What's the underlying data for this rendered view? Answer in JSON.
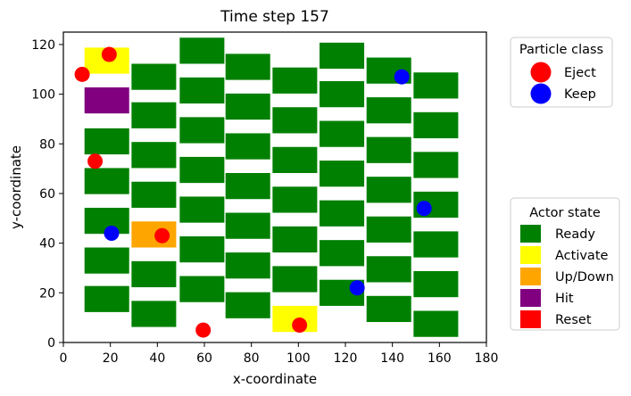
{
  "chart_data": {
    "type": "scatter",
    "title": "Time step 157",
    "xlabel": "x-coordinate",
    "ylabel": "y-coordinate",
    "xlim": [
      0,
      180
    ],
    "ylim": [
      0,
      125
    ],
    "xticks": [
      0,
      20,
      40,
      60,
      80,
      100,
      120,
      140,
      160,
      180
    ],
    "yticks": [
      0,
      20,
      40,
      60,
      80,
      100,
      120
    ],
    "grid": false,
    "actor_width": 19,
    "actor_height": 10.5,
    "state_colors": {
      "Ready": "#008000",
      "Activate": "#ffff00",
      "Up/Down": "#ffa500",
      "Hit": "#800080",
      "Reset": "#ff0000"
    },
    "particle_colors": {
      "Eject": "#ff0000",
      "Keep": "#0000ff"
    },
    "actor_columns": [
      {
        "x": 18.5,
        "centers": [
          17.5,
          33.0,
          49.0,
          65.0,
          81.0,
          97.5,
          113.5
        ],
        "states": [
          "Ready",
          "Ready",
          "Ready",
          "Ready",
          "Ready",
          "Hit",
          "Activate"
        ]
      },
      {
        "x": 38.5,
        "centers": [
          11.5,
          27.5,
          43.5,
          59.5,
          75.5,
          91.5,
          107.0
        ],
        "states": [
          "Ready",
          "Ready",
          "Up/Down",
          "Ready",
          "Ready",
          "Ready",
          "Ready"
        ]
      },
      {
        "x": 59.0,
        "centers": [
          21.5,
          37.5,
          53.5,
          69.5,
          85.5,
          101.5,
          117.5
        ],
        "states": [
          "Ready",
          "Ready",
          "Ready",
          "Ready",
          "Ready",
          "Ready",
          "Ready"
        ]
      },
      {
        "x": 78.5,
        "centers": [
          15.0,
          31.0,
          47.0,
          63.0,
          79.0,
          95.0,
          111.0
        ],
        "states": [
          "Ready",
          "Ready",
          "Ready",
          "Ready",
          "Ready",
          "Ready",
          "Ready"
        ]
      },
      {
        "x": 98.5,
        "centers": [
          9.5,
          25.5,
          41.5,
          57.5,
          73.5,
          89.5,
          105.5
        ],
        "states": [
          "Activate",
          "Ready",
          "Ready",
          "Ready",
          "Ready",
          "Ready",
          "Ready"
        ]
      },
      {
        "x": 118.5,
        "centers": [
          20.0,
          36.0,
          52.0,
          68.0,
          84.0,
          100.0,
          115.5
        ],
        "states": [
          "Ready",
          "Ready",
          "Ready",
          "Ready",
          "Ready",
          "Ready",
          "Ready"
        ]
      },
      {
        "x": 138.5,
        "centers": [
          13.5,
          29.5,
          45.5,
          61.5,
          77.5,
          93.5,
          109.5
        ],
        "states": [
          "Ready",
          "Ready",
          "Ready",
          "Ready",
          "Ready",
          "Ready",
          "Ready"
        ]
      },
      {
        "x": 158.5,
        "centers": [
          7.5,
          23.5,
          39.5,
          55.5,
          71.5,
          87.5,
          103.5
        ],
        "states": [
          "Ready",
          "Ready",
          "Ready",
          "Ready",
          "Ready",
          "Ready",
          "Ready"
        ]
      }
    ],
    "series": [
      {
        "name": "Eject",
        "points": [
          [
            8,
            108
          ],
          [
            19.5,
            116
          ],
          [
            13.5,
            73
          ],
          [
            42,
            43
          ],
          [
            59.5,
            5
          ],
          [
            100.5,
            7
          ]
        ]
      },
      {
        "name": "Keep",
        "points": [
          [
            20.5,
            44
          ],
          [
            144,
            107
          ],
          [
            153.5,
            54
          ],
          [
            125,
            22
          ]
        ]
      }
    ],
    "legends": [
      {
        "title": "Particle class",
        "kind": "circle",
        "entries": [
          "Eject",
          "Keep"
        ]
      },
      {
        "title": "Actor state",
        "kind": "square",
        "entries": [
          "Ready",
          "Activate",
          "Up/Down",
          "Hit",
          "Reset"
        ]
      }
    ]
  }
}
